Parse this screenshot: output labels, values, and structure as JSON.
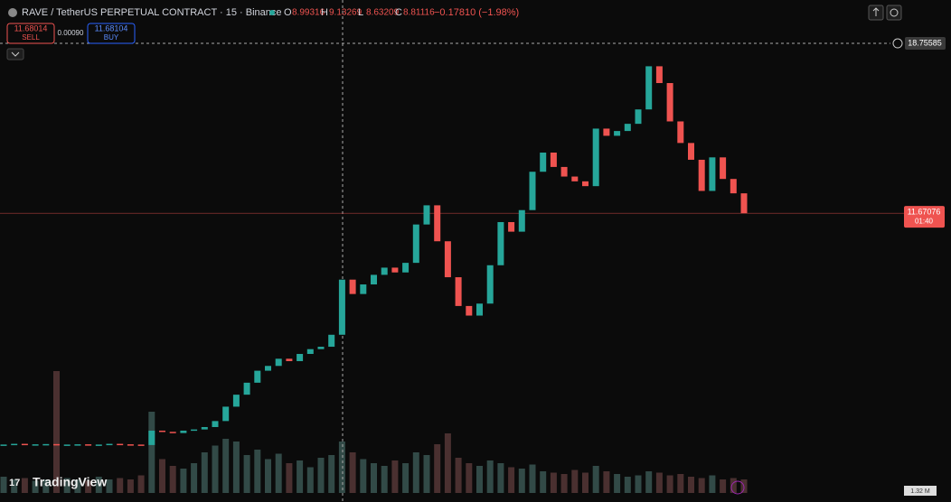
{
  "header": {
    "title": "RAVE / TetherUS PERPETUAL CONTRACT · 15 · Binance",
    "ohlc": [
      {
        "label": "O",
        "value": "8.99316"
      },
      {
        "label": "H",
        "value": "9.13269"
      },
      {
        "label": "L",
        "value": "8.63209"
      },
      {
        "label": "C",
        "value": "8.81116"
      }
    ],
    "change": "−0.17810 (−1.98%)"
  },
  "trade": {
    "sell_price": "11.68014",
    "sell_label": "SELL",
    "spread": "0.00090",
    "buy_price": "11.68104",
    "buy_label": "BUY"
  },
  "watermark": "TradingView",
  "chart_data": {
    "type": "candlestick",
    "closes": [
      2.02,
      2.05,
      2.0,
      2.03,
      2.04,
      2.01,
      2.02,
      2.03,
      2.0,
      2.02,
      2.05,
      2.03,
      2.02,
      2.0,
      2.6,
      2.55,
      2.5,
      2.6,
      2.65,
      2.75,
      3.0,
      3.6,
      4.1,
      4.6,
      5.1,
      5.3,
      5.6,
      5.5,
      5.8,
      6.0,
      6.1,
      6.6,
      8.9,
      8.3,
      8.7,
      9.1,
      9.4,
      9.2,
      9.6,
      11.2,
      12.0,
      10.5,
      9.0,
      7.8,
      7.4,
      7.9,
      9.5,
      11.3,
      10.9,
      11.8,
      13.4,
      14.2,
      13.6,
      13.2,
      13.0,
      12.8,
      15.2,
      14.9,
      15.1,
      15.4,
      16.0,
      17.8,
      17.1,
      15.5,
      14.6,
      13.9,
      12.6,
      14.0,
      13.1,
      12.5,
      11.67
    ],
    "volumes": [
      1.2,
      1.0,
      1.1,
      0.9,
      1.0,
      9.0,
      1.1,
      1.0,
      0.9,
      1.2,
      1.0,
      1.1,
      1.0,
      1.3,
      6.0,
      2.5,
      2.0,
      1.8,
      2.2,
      3.0,
      3.5,
      4.0,
      3.8,
      2.8,
      3.2,
      2.5,
      2.9,
      2.2,
      2.4,
      1.9,
      2.6,
      2.8,
      3.8,
      3.0,
      2.5,
      2.2,
      2.0,
      2.4,
      2.2,
      3.0,
      2.8,
      3.6,
      4.4,
      2.6,
      2.2,
      2.0,
      2.4,
      2.2,
      1.9,
      1.8,
      2.1,
      1.6,
      1.5,
      1.4,
      1.7,
      1.5,
      2.0,
      1.6,
      1.4,
      1.2,
      1.3,
      1.6,
      1.5,
      1.3,
      1.4,
      1.2,
      1.1,
      1.3,
      1.0,
      1.1,
      1.0
    ],
    "ylim": [
      0,
      20
    ],
    "vlim": [
      0,
      10
    ],
    "crosshair_price": 18.75585,
    "current_price": 11.67076,
    "countdown": "01:40",
    "volume_label": "1.32 M",
    "up_color": "#26a69a",
    "down_color": "#ef5350"
  }
}
